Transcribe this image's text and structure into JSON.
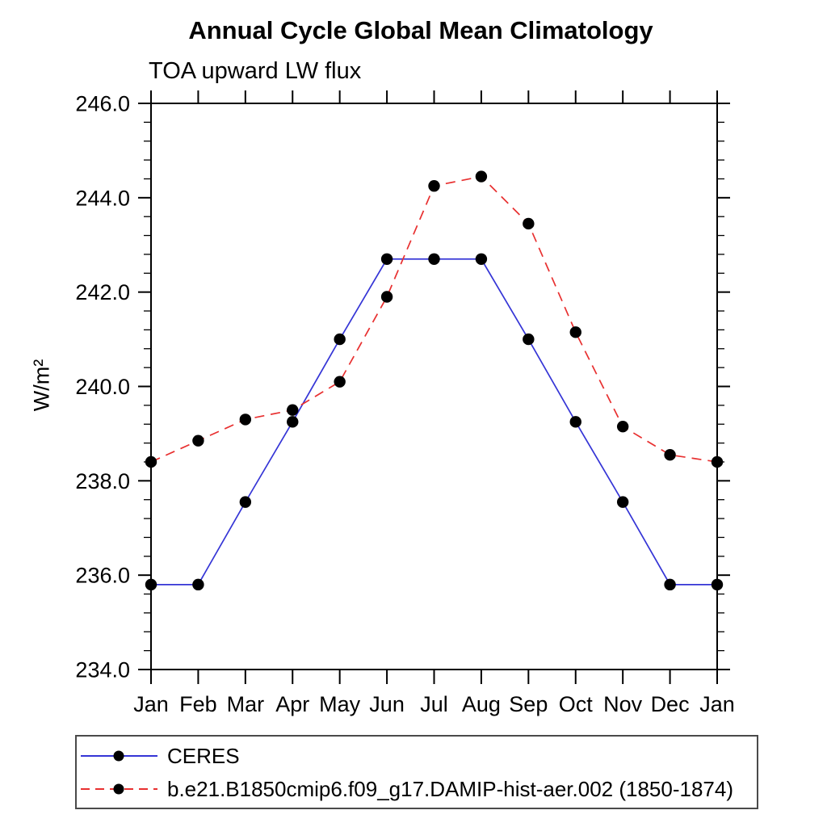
{
  "chart_data": {
    "type": "line",
    "title": "Annual Cycle Global Mean Climatology",
    "left_subtitle": "TOA upward LW flux",
    "ylabel": "W/m²",
    "x_tick_labels": [
      "Jan",
      "Feb",
      "Mar",
      "Apr",
      "May",
      "Jun",
      "Jul",
      "Aug",
      "Sep",
      "Oct",
      "Nov",
      "Dec",
      "Jan"
    ],
    "ylim": [
      234.0,
      246.0
    ],
    "y_major_step": 2.0,
    "y_minor_step": 0.4,
    "y_major_tick_labels": [
      "234.0",
      "236.0",
      "238.0",
      "240.0",
      "242.0",
      "244.0",
      "246.0"
    ],
    "grid": false,
    "legend_position": "bottom-left-box",
    "axis_color": "#000000",
    "marker_color": "#000000",
    "series": [
      {
        "name": "CERES",
        "line_color": "#3535d6",
        "line_style": "solid",
        "values": [
          235.8,
          235.8,
          237.55,
          239.25,
          241.0,
          242.7,
          242.7,
          242.7,
          241.0,
          239.25,
          237.55,
          235.8,
          235.8
        ]
      },
      {
        "name": "b.e21.B1850cmip6.f09_g17.DAMIP-hist-aer.002 (1850-1874)",
        "line_color": "#e83030",
        "line_style": "dashed",
        "values": [
          238.4,
          238.85,
          239.3,
          239.5,
          240.1,
          241.9,
          244.25,
          244.45,
          243.45,
          241.15,
          239.15,
          238.55,
          238.4
        ]
      }
    ]
  }
}
